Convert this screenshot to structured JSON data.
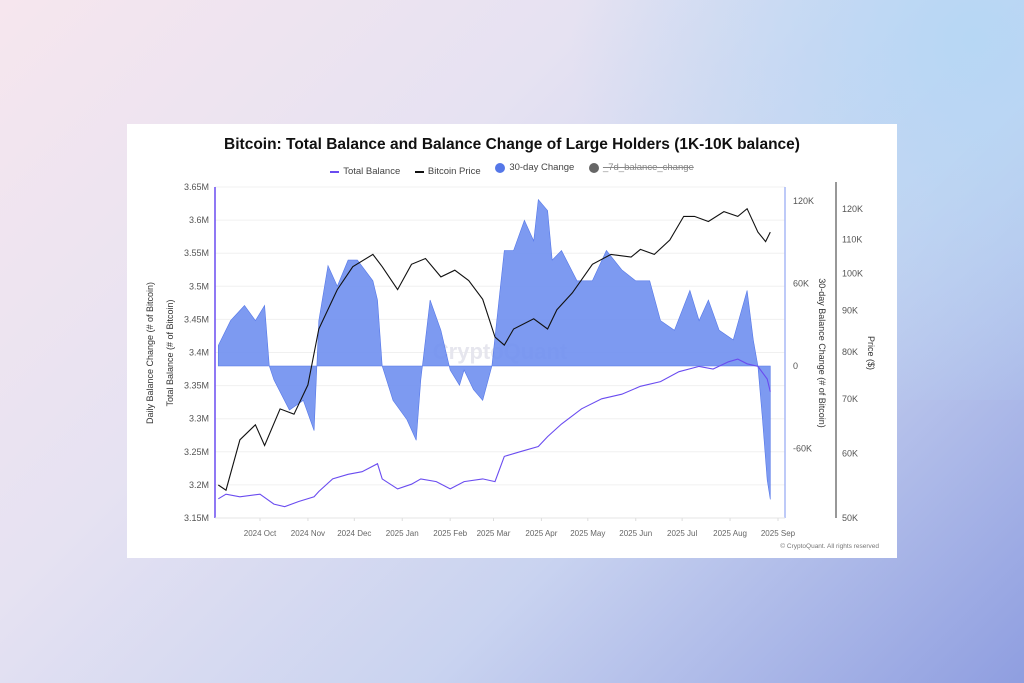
{
  "chart_data": {
    "type": "line",
    "title": "Bitcoin: Total Balance and Balance Change of Large Holders (1K-10K balance)",
    "legend": [
      {
        "name": "Total Balance",
        "color": "#6a4cf0",
        "kind": "line"
      },
      {
        "name": "Bitcoin Price",
        "color": "#111111",
        "kind": "line"
      },
      {
        "name": "30-day Change",
        "color": "#5577e8",
        "kind": "dot"
      },
      {
        "name": "_7d_balance_change",
        "color": "#666666",
        "kind": "dot",
        "hidden": true
      }
    ],
    "legend_position": "top",
    "watermark": "CryptoQuant",
    "copyright": "© CryptoQuant. All rights reserved",
    "x_ticks": [
      {
        "label": "2024 Oct",
        "date": "2024-10-01"
      },
      {
        "label": "2024 Nov",
        "date": "2024-11-01"
      },
      {
        "label": "2024 Dec",
        "date": "2024-12-01"
      },
      {
        "label": "2025 Jan",
        "date": "2025-01-01"
      },
      {
        "label": "2025 Feb",
        "date": "2025-02-01"
      },
      {
        "label": "2025 Mar",
        "date": "2025-03-01"
      },
      {
        "label": "2025 Apr",
        "date": "2025-04-01"
      },
      {
        "label": "2025 May",
        "date": "2025-05-01"
      },
      {
        "label": "2025 Jun",
        "date": "2025-06-01"
      },
      {
        "label": "2025 Jul",
        "date": "2025-07-01"
      },
      {
        "label": "2025 Aug",
        "date": "2025-08-01"
      },
      {
        "label": "2025 Sep",
        "date": "2025-09-01"
      }
    ],
    "x_range": [
      "2024-09-01",
      "2025-09-05"
    ],
    "axes": {
      "left": {
        "labels": [
          "Daily Balance Change (# of Bitcoin)",
          "Total Balance (# of Bitcoin)"
        ],
        "range": [
          3.15,
          3.65
        ],
        "unit": "M",
        "ticks": [
          "3.15M",
          "3.2M",
          "3.25M",
          "3.3M",
          "3.35M",
          "3.4M",
          "3.45M",
          "3.5M",
          "3.55M",
          "3.6M",
          "3.65M"
        ]
      },
      "right1": {
        "label": "30-day Balance Change (# of Bitcoin)",
        "range": [
          -110,
          122
        ],
        "unit": "K",
        "ticks": [
          "-60K",
          "0",
          "60K",
          "120K"
        ],
        "tick_values": [
          -60,
          0,
          60,
          120
        ]
      },
      "right2": {
        "label": "Price ($)",
        "scale": "log",
        "range": [
          50,
          125
        ],
        "unit": "K",
        "ticks": [
          "50K",
          "60K",
          "70K",
          "80K",
          "90K",
          "100K",
          "110K",
          "120K"
        ],
        "tick_values": [
          50,
          60,
          70,
          80,
          90,
          100,
          110,
          120
        ]
      }
    },
    "series": [
      {
        "name": "Total Balance",
        "axis": "left",
        "points": [
          [
            "2024-09-04",
            3.179
          ],
          [
            "2024-09-09",
            3.186
          ],
          [
            "2024-09-18",
            3.182
          ],
          [
            "2024-10-01",
            3.186
          ],
          [
            "2024-10-10",
            3.171
          ],
          [
            "2024-10-17",
            3.167
          ],
          [
            "2024-10-26",
            3.175
          ],
          [
            "2024-11-05",
            3.182
          ],
          [
            "2024-11-08",
            3.19
          ],
          [
            "2024-11-17",
            3.209
          ],
          [
            "2024-11-27",
            3.216
          ],
          [
            "2024-12-06",
            3.22
          ],
          [
            "2024-12-16",
            3.232
          ],
          [
            "2024-12-19",
            3.209
          ],
          [
            "2024-12-29",
            3.194
          ],
          [
            "2025-01-07",
            3.201
          ],
          [
            "2025-01-13",
            3.209
          ],
          [
            "2025-01-23",
            3.205
          ],
          [
            "2025-02-01",
            3.194
          ],
          [
            "2025-02-10",
            3.205
          ],
          [
            "2025-02-22",
            3.209
          ],
          [
            "2025-03-02",
            3.205
          ],
          [
            "2025-03-08",
            3.243
          ],
          [
            "2025-03-18",
            3.25
          ],
          [
            "2025-03-30",
            3.258
          ],
          [
            "2025-04-05",
            3.273
          ],
          [
            "2025-04-14",
            3.292
          ],
          [
            "2025-04-27",
            3.315
          ],
          [
            "2025-05-10",
            3.33
          ],
          [
            "2025-05-23",
            3.337
          ],
          [
            "2025-06-04",
            3.349
          ],
          [
            "2025-06-17",
            3.356
          ],
          [
            "2025-06-29",
            3.371
          ],
          [
            "2025-07-12",
            3.379
          ],
          [
            "2025-07-21",
            3.375
          ],
          [
            "2025-07-31",
            3.386
          ],
          [
            "2025-08-06",
            3.39
          ],
          [
            "2025-08-12",
            3.383
          ],
          [
            "2025-08-19",
            3.379
          ],
          [
            "2025-08-25",
            3.36
          ],
          [
            "2025-08-27",
            3.341
          ]
        ]
      },
      {
        "name": "Bitcoin Price",
        "axis": "right2",
        "points": [
          [
            "2024-09-04",
            54.9
          ],
          [
            "2024-09-09",
            54.1
          ],
          [
            "2024-09-18",
            62.4
          ],
          [
            "2024-09-28",
            65.1
          ],
          [
            "2024-10-04",
            61.4
          ],
          [
            "2024-10-14",
            68.1
          ],
          [
            "2024-10-23",
            67.1
          ],
          [
            "2024-11-01",
            72.9
          ],
          [
            "2024-11-08",
            85.4
          ],
          [
            "2024-11-20",
            95.5
          ],
          [
            "2024-11-30",
            101.9
          ],
          [
            "2024-12-13",
            105.5
          ],
          [
            "2024-12-19",
            101.9
          ],
          [
            "2024-12-29",
            95.5
          ],
          [
            "2025-01-07",
            102.6
          ],
          [
            "2025-01-16",
            104.3
          ],
          [
            "2025-01-26",
            99.0
          ],
          [
            "2025-02-04",
            100.9
          ],
          [
            "2025-02-13",
            98.0
          ],
          [
            "2025-02-22",
            92.9
          ],
          [
            "2025-03-02",
            83.5
          ],
          [
            "2025-03-08",
            81.6
          ],
          [
            "2025-03-14",
            85.4
          ],
          [
            "2025-03-27",
            87.9
          ],
          [
            "2025-04-05",
            85.4
          ],
          [
            "2025-04-11",
            90.2
          ],
          [
            "2025-04-21",
            94.6
          ],
          [
            "2025-05-04",
            102.6
          ],
          [
            "2025-05-16",
            105.5
          ],
          [
            "2025-05-29",
            104.7
          ],
          [
            "2025-06-04",
            107.0
          ],
          [
            "2025-06-13",
            105.5
          ],
          [
            "2025-06-23",
            109.9
          ],
          [
            "2025-07-02",
            117.5
          ],
          [
            "2025-07-09",
            117.5
          ],
          [
            "2025-07-18",
            115.8
          ],
          [
            "2025-07-28",
            119.1
          ],
          [
            "2025-08-06",
            117.5
          ],
          [
            "2025-08-12",
            120.1
          ],
          [
            "2025-08-19",
            112.4
          ],
          [
            "2025-08-24",
            109.4
          ],
          [
            "2025-08-27",
            112.4
          ]
        ]
      },
      {
        "name": "30-day Change",
        "axis": "right1",
        "type": "area",
        "points": [
          [
            "2024-09-04",
            15
          ],
          [
            "2024-09-12",
            33
          ],
          [
            "2024-09-21",
            44
          ],
          [
            "2024-09-28",
            33
          ],
          [
            "2024-10-04",
            44
          ],
          [
            "2024-10-07",
            0
          ],
          [
            "2024-10-10",
            -10
          ],
          [
            "2024-10-20",
            -32
          ],
          [
            "2024-10-29",
            -25
          ],
          [
            "2024-11-05",
            -47
          ],
          [
            "2024-11-08",
            33
          ],
          [
            "2024-11-14",
            73
          ],
          [
            "2024-11-20",
            58
          ],
          [
            "2024-11-27",
            77
          ],
          [
            "2024-12-03",
            77
          ],
          [
            "2024-12-13",
            62
          ],
          [
            "2024-12-16",
            48
          ],
          [
            "2024-12-19",
            0
          ],
          [
            "2024-12-26",
            -25
          ],
          [
            "2025-01-04",
            -39
          ],
          [
            "2025-01-10",
            -54
          ],
          [
            "2025-01-13",
            -10
          ],
          [
            "2025-01-19",
            48
          ],
          [
            "2025-01-26",
            26
          ],
          [
            "2025-02-01",
            -3
          ],
          [
            "2025-02-07",
            -14
          ],
          [
            "2025-02-10",
            -3
          ],
          [
            "2025-02-16",
            -17
          ],
          [
            "2025-02-22",
            -25
          ],
          [
            "2025-02-28",
            0
          ],
          [
            "2025-03-08",
            84
          ],
          [
            "2025-03-14",
            84
          ],
          [
            "2025-03-21",
            106
          ],
          [
            "2025-03-27",
            91
          ],
          [
            "2025-03-30",
            121
          ],
          [
            "2025-04-05",
            113
          ],
          [
            "2025-04-08",
            77
          ],
          [
            "2025-04-14",
            84
          ],
          [
            "2025-04-24",
            62
          ],
          [
            "2025-05-04",
            62
          ],
          [
            "2025-05-13",
            84
          ],
          [
            "2025-05-23",
            70
          ],
          [
            "2025-06-01",
            62
          ],
          [
            "2025-06-10",
            62
          ],
          [
            "2025-06-17",
            33
          ],
          [
            "2025-06-26",
            26
          ],
          [
            "2025-07-06",
            55
          ],
          [
            "2025-07-12",
            33
          ],
          [
            "2025-07-18",
            48
          ],
          [
            "2025-07-25",
            26
          ],
          [
            "2025-08-03",
            19
          ],
          [
            "2025-08-12",
            55
          ],
          [
            "2025-08-16",
            19
          ],
          [
            "2025-08-19",
            0
          ],
          [
            "2025-08-22",
            -39
          ],
          [
            "2025-08-25",
            -83
          ],
          [
            "2025-08-27",
            -97
          ]
        ]
      }
    ]
  }
}
